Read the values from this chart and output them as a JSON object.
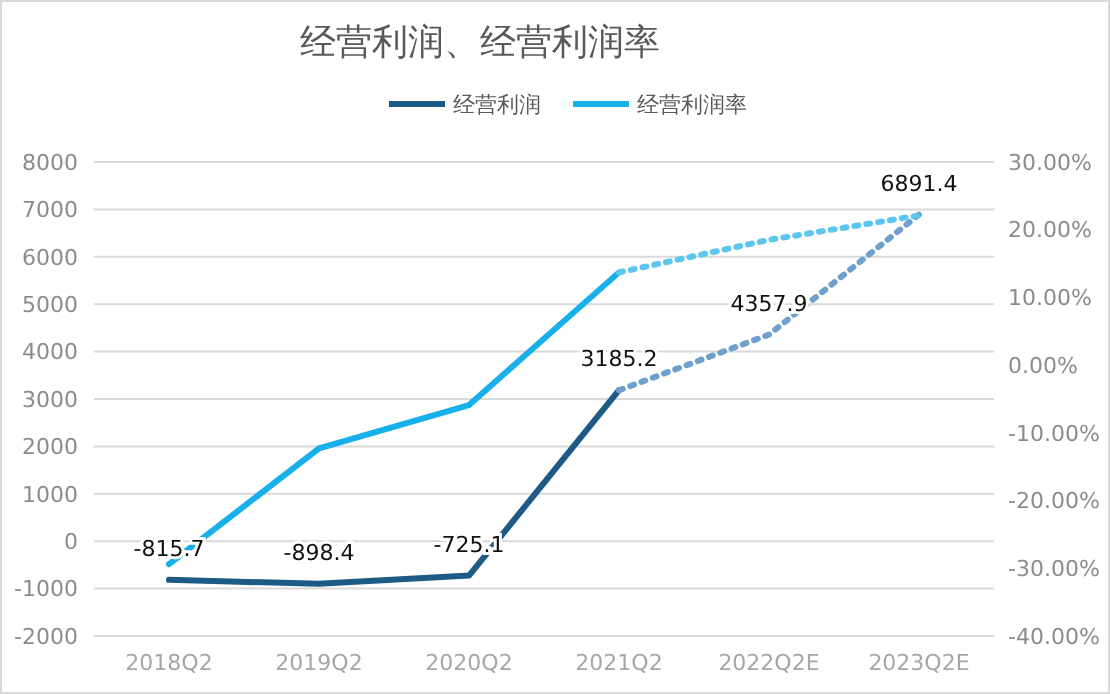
{
  "chart_data": {
    "type": "line",
    "title": "经营利润、经营利润率",
    "categories": [
      "2018Q2",
      "2019Q2",
      "2020Q2",
      "2021Q2",
      "2022Q2E",
      "2023Q2E"
    ],
    "series": [
      {
        "name": "经营利润",
        "color": "#1d5a86",
        "values": [
          -815.7,
          -898.4,
          -725.1,
          3185.2,
          null,
          null
        ],
        "value_labels": [
          "-815.7",
          "-898.4",
          "-725.1",
          "3185.2",
          null,
          null
        ]
      },
      {
        "name": "经营利润率",
        "color": "#18b0ea",
        "axis": "y2",
        "values": [
          -29.4,
          -12.3,
          -5.9,
          13.7,
          null,
          null
        ]
      },
      {
        "color": "#6f9fcc",
        "line_style": "dotted",
        "values": [
          null,
          null,
          null,
          3185.2,
          4357.9,
          6891.4
        ],
        "value_labels": [
          null,
          null,
          null,
          null,
          "4357.9",
          "6891.4"
        ]
      },
      {
        "color": "#5cc6f0",
        "line_style": "dotted",
        "axis": "y2",
        "values": [
          null,
          null,
          null,
          13.7,
          18.5,
          22.1
        ]
      }
    ],
    "ylim": [
      -2000,
      8000
    ],
    "yticks": [
      -2000,
      -1000,
      0,
      1000,
      2000,
      3000,
      4000,
      5000,
      6000,
      7000,
      8000
    ],
    "y2lim": [
      -40,
      30
    ],
    "y2ticks": [
      {
        "value": -40,
        "label": "-40.00%"
      },
      {
        "value": -30,
        "label": "-30.00%"
      },
      {
        "value": -20,
        "label": "-20.00%"
      },
      {
        "value": -10,
        "label": "-10.00%"
      },
      {
        "value": 0,
        "label": "0.00%"
      },
      {
        "value": 10,
        "label": "10.00%"
      },
      {
        "value": 20,
        "label": "20.00%"
      },
      {
        "value": 30,
        "label": "30.00%"
      }
    ],
    "grid": "y",
    "legend": "top",
    "line_style": "solid",
    "marker": "none"
  }
}
